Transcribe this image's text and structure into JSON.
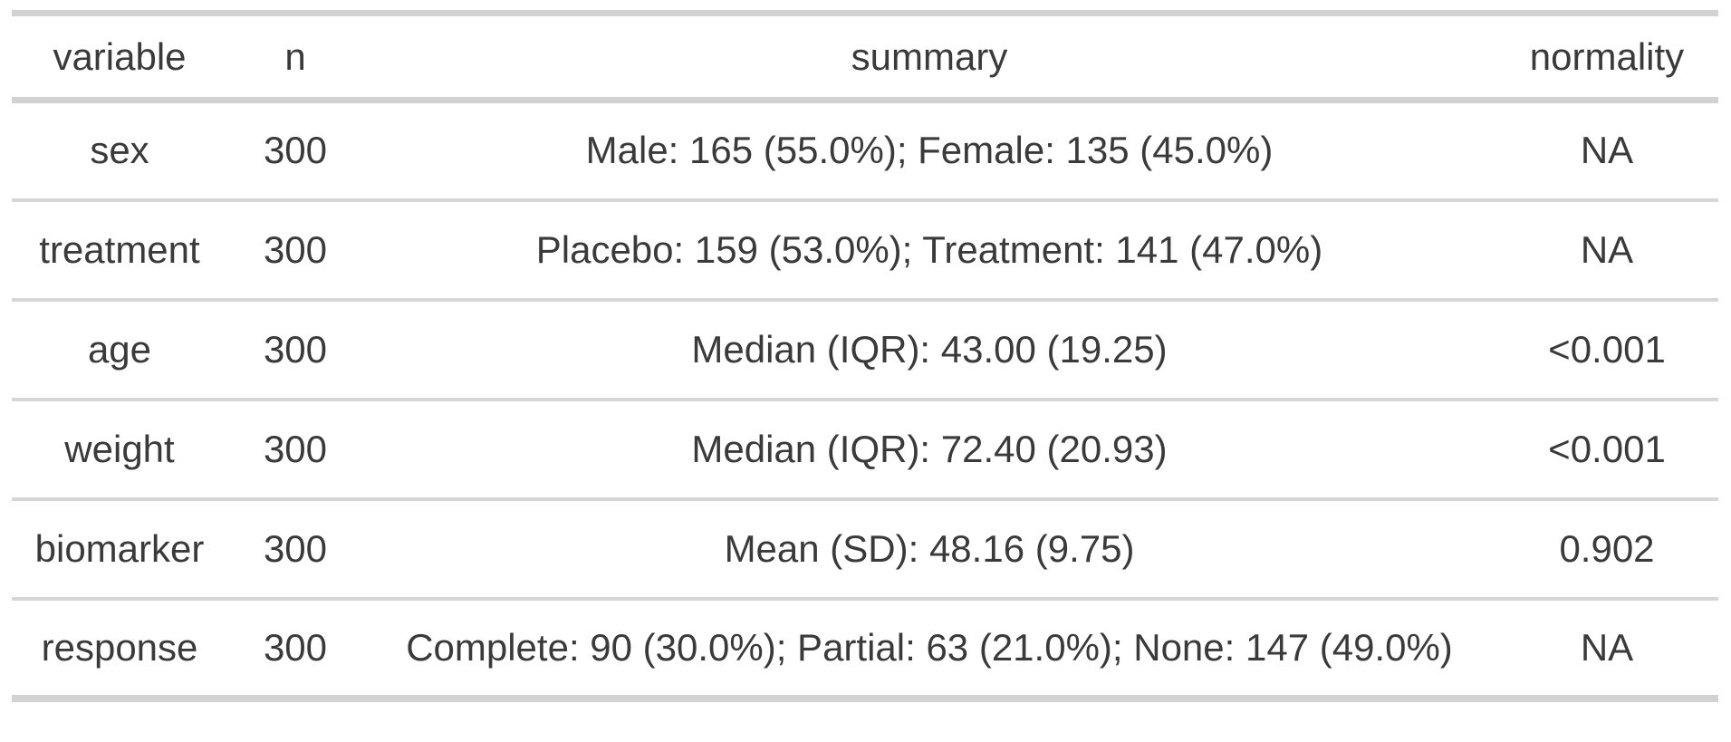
{
  "chart_data": {
    "type": "table",
    "title": "",
    "columns": [
      "variable",
      "n",
      "summary",
      "normality"
    ],
    "rows": [
      {
        "variable": "sex",
        "n": "300",
        "summary": "Male: 165 (55.0%); Female: 135 (45.0%)",
        "normality": "NA"
      },
      {
        "variable": "treatment",
        "n": "300",
        "summary": "Placebo: 159 (53.0%); Treatment: 141 (47.0%)",
        "normality": "NA"
      },
      {
        "variable": "age",
        "n": "300",
        "summary": "Median (IQR): 43.00 (19.25)",
        "normality": "<0.001"
      },
      {
        "variable": "weight",
        "n": "300",
        "summary": "Median (IQR): 72.40 (20.93)",
        "normality": "<0.001"
      },
      {
        "variable": "biomarker",
        "n": "300",
        "summary": "Mean (SD): 48.16 (9.75)",
        "normality": "0.902"
      },
      {
        "variable": "response",
        "n": "300",
        "summary": "Complete: 90 (30.0%); Partial: 63 (21.0%); None: 147 (49.0%)",
        "normality": "NA"
      }
    ],
    "layout": {
      "grid": "horizontal-rules-only",
      "alignment": "center",
      "legend": "none"
    },
    "colors": {
      "text": "#3a3a3a",
      "border_heavy": "#d2d2d2",
      "border_light": "#d7d7d7",
      "background": "#ffffff"
    }
  }
}
